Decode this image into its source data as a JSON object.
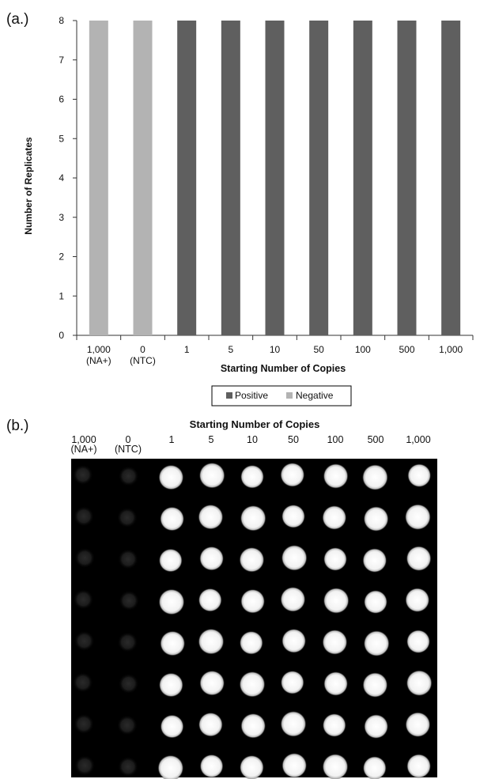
{
  "panel_a_label": "(a.)",
  "panel_b_label": "(b.)",
  "colors": {
    "positive": "#5f5f5f",
    "negative": "#b3b3b3",
    "axis": "#333333",
    "image_bg": "#000000"
  },
  "chart_data": {
    "type": "bar",
    "stacked": true,
    "categories": [
      [
        "1,000",
        "(NA+)"
      ],
      [
        "0",
        "(NTC)"
      ],
      [
        "1"
      ],
      [
        "5"
      ],
      [
        "10"
      ],
      [
        "50"
      ],
      [
        "100"
      ],
      [
        "500"
      ],
      [
        "1,000"
      ]
    ],
    "series": [
      {
        "name": "Positive",
        "color": "#5f5f5f",
        "values": [
          0,
          0,
          8,
          8,
          8,
          8,
          8,
          8,
          8
        ]
      },
      {
        "name": "Negative",
        "color": "#b3b3b3",
        "values": [
          8,
          8,
          0,
          0,
          0,
          0,
          0,
          0,
          0
        ]
      }
    ],
    "title": "",
    "xlabel": "Starting Number of Copies",
    "ylabel": "Number of Replicates",
    "ylim": [
      0,
      8
    ],
    "yticks": [
      0,
      1,
      2,
      3,
      4,
      5,
      6,
      7,
      8
    ],
    "grid": false,
    "legend_position": "bottom"
  },
  "image_panel": {
    "title": "Starting Number of Copies",
    "columns": [
      [
        "1,000",
        "(NA+)"
      ],
      [
        "0",
        "(NTC)"
      ],
      [
        "1"
      ],
      [
        "5"
      ],
      [
        "10"
      ],
      [
        "50"
      ],
      [
        "100"
      ],
      [
        "500"
      ],
      [
        "1,000"
      ]
    ],
    "row_count": 8,
    "column_brightness": [
      0.12,
      0.14,
      1,
      1,
      1,
      1,
      1,
      1,
      1
    ]
  }
}
